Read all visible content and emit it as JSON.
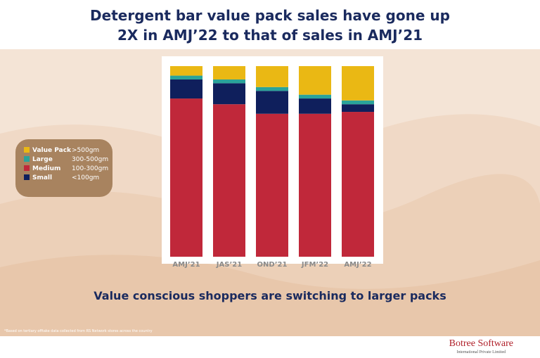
{
  "chart_data": {
    "type": "stacked-bar",
    "title": "Detergent bar value pack sales have gone up 2X in AMJ’22 to that of sales in AMJ’21",
    "subtitle": "Value conscious shoppers are switching to larger packs",
    "footnote": "*Based on tertiary offtake data collected from RS Network stores across the country",
    "brand": "Botree Software",
    "brand_sub": "International Private Limited",
    "categories": [
      "AMJ’21",
      "JAS’21",
      "OND’21",
      "JFM’22",
      "AMJ’22"
    ],
    "ylim": [
      0,
      100
    ],
    "series": [
      {
        "name": "Medium",
        "range": "100-300gm",
        "color": "#c0283a",
        "values": [
          83,
          80,
          75,
          75,
          76
        ]
      },
      {
        "name": "Small",
        "range": "<100gm",
        "color": "#0f1f5c",
        "values": [
          10,
          11,
          12,
          8,
          4
        ]
      },
      {
        "name": "Large",
        "range": "300-500gm",
        "color": "#2aa39a",
        "values": [
          2,
          2,
          2,
          2,
          2
        ]
      },
      {
        "name": "Value Pack",
        "range": ">500gm",
        "color": "#eab814",
        "values": [
          5,
          7,
          11,
          15,
          18
        ]
      }
    ]
  }
}
